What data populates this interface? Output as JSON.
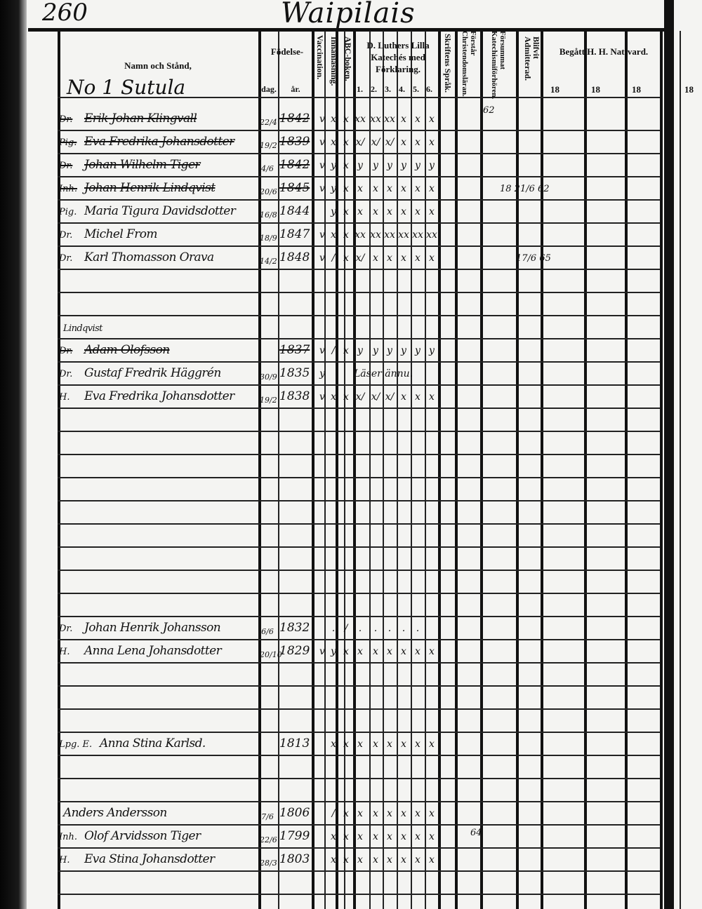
{
  "page": {
    "number": "260",
    "parish": "Waipilais"
  },
  "headers": {
    "name": "Namn och Stånd,",
    "birth": "Födelse-",
    "dag": "dag.",
    "ar": "år.",
    "vaccination": "Vaccination.",
    "innanlasning": "Innanläsning.",
    "abc": "ABC-boken.",
    "luther": "D. Luthers Lilla Katechés med Förklaring.",
    "luther_cols": [
      "1.",
      "2.",
      "3.",
      "4.",
      "5.",
      "6."
    ],
    "skriftens": "Skriftens Språk.",
    "forstar": "Förstår Christendomsläran.",
    "forsummat": "Försummat Katechismiförhören.",
    "admit": "Blifvit Admitterad.",
    "nattvard": "Begått H. H. Nattvard.",
    "year_cols": [
      "18",
      "18",
      "18",
      "18"
    ]
  },
  "section_title": "No 1 Sutula",
  "entries": [
    {
      "title": "Dr.",
      "name": "Erik Johan Klingvall",
      "dag": "22/4",
      "ar": "1842",
      "marks": [
        "v",
        "x",
        "x",
        "xx",
        "xx",
        "xx",
        "x",
        "x",
        "x"
      ],
      "struck": true
    },
    {
      "title": "Pig.",
      "name": "Eva Fredrika Johansdotter",
      "dag": "19/2",
      "ar": "1839",
      "marks": [
        "v",
        "x",
        "x",
        "x/",
        "x/",
        "x/",
        "x",
        "x",
        "x"
      ],
      "struck": true
    },
    {
      "title": "Dr.",
      "name": "Johan Wilhelm Tiger",
      "dag": "4/6",
      "ar": "1842",
      "marks": [
        "v",
        "y",
        "x",
        "y",
        "y",
        "y",
        "y",
        "y",
        "y"
      ],
      "struck": true
    },
    {
      "title": "Inh.",
      "name": "Johan Henrik Lindqvist",
      "dag": "20/6",
      "ar": "1845",
      "marks": [
        "v",
        "y",
        "x",
        "x",
        "x",
        "x",
        "x",
        "x",
        "x"
      ],
      "struck": true,
      "note": "18 21/6 62"
    },
    {
      "title": "Pig.",
      "name": "Maria Tigura Davidsdotter",
      "dag": "16/8",
      "ar": "1844",
      "marks": [
        "",
        "y",
        "x",
        "x",
        "x",
        "x",
        "x",
        "x",
        "x"
      ]
    },
    {
      "title": "Dr.",
      "name": "Michel From",
      "dag": "18/9",
      "ar": "1847",
      "marks": [
        "v",
        "x",
        "x",
        "xx",
        "xx",
        "xx",
        "xx",
        "xx",
        "xx"
      ]
    },
    {
      "title": "Dr.",
      "name": "Karl Thomasson Orava",
      "dag": "14/2",
      "ar": "1848",
      "marks": [
        "v",
        "/",
        "x",
        "x/",
        "x",
        "x",
        "x",
        "x",
        "x"
      ],
      "note": "17/6 65"
    },
    {
      "title": "",
      "name": "Lindqvist",
      "dag": "",
      "ar": "",
      "marks": []
    },
    {
      "title": "Dr.",
      "name": "Adam Olofsson",
      "dag": "",
      "ar": "1837",
      "marks": [
        "v",
        "/",
        "x",
        "y",
        "y",
        "y",
        "y",
        "y",
        "y"
      ],
      "struck": true
    },
    {
      "title": "Dr.",
      "name": "Gustaf Fredrik Häggrén",
      "dag": "30/9",
      "ar": "1835",
      "marks": [
        "y",
        "",
        "",
        "Läser ännu.",
        "",
        "",
        "",
        "",
        ""
      ]
    },
    {
      "title": "H.",
      "name": "Eva Fredrika Johansdotter",
      "dag": "19/2",
      "ar": "1838",
      "marks": [
        "v",
        "x",
        "x",
        "x/",
        "x/",
        "x/",
        "x",
        "x",
        "x"
      ]
    },
    {
      "title": "Dr.",
      "name": "Johan Henrik Johansson",
      "dag": "6/6",
      "ar": "1832",
      "marks": [
        "",
        ".",
        "/",
        ".",
        ".",
        ".",
        ".",
        ".",
        ""
      ]
    },
    {
      "title": "H.",
      "name": "Anna Lena Johansdotter",
      "dag": "20/10",
      "ar": "1829",
      "marks": [
        "v",
        "y",
        "x",
        "x",
        "x",
        "x",
        "x",
        "x",
        "x"
      ]
    },
    {
      "title": "Lpg. E.",
      "name": "Anna Stina Karlsd.",
      "dag": "",
      "ar": "1813",
      "marks": [
        "",
        "x",
        "x",
        "x",
        "x",
        "x",
        "x",
        "x",
        "x"
      ]
    },
    {
      "title": "",
      "name": "Anders Andersson",
      "dag": "7/6",
      "ar": "1806",
      "marks": [
        "",
        "/",
        "x",
        "x",
        "x",
        "x",
        "x",
        "x",
        "x"
      ]
    },
    {
      "title": "Inh.",
      "name": "Olof Arvidsson Tiger",
      "dag": "22/6",
      "ar": "1799",
      "marks": [
        "",
        "x",
        "x",
        "x",
        "x",
        "x",
        "x",
        "x",
        "x"
      ],
      "note2": "64"
    },
    {
      "title": "H.",
      "name": "Eva Stina Johansdotter",
      "dag": "28/3",
      "ar": "1803",
      "marks": [
        "",
        "x",
        "x",
        "x",
        "x",
        "x",
        "x",
        "x",
        "x"
      ]
    }
  ],
  "top_note": "62"
}
